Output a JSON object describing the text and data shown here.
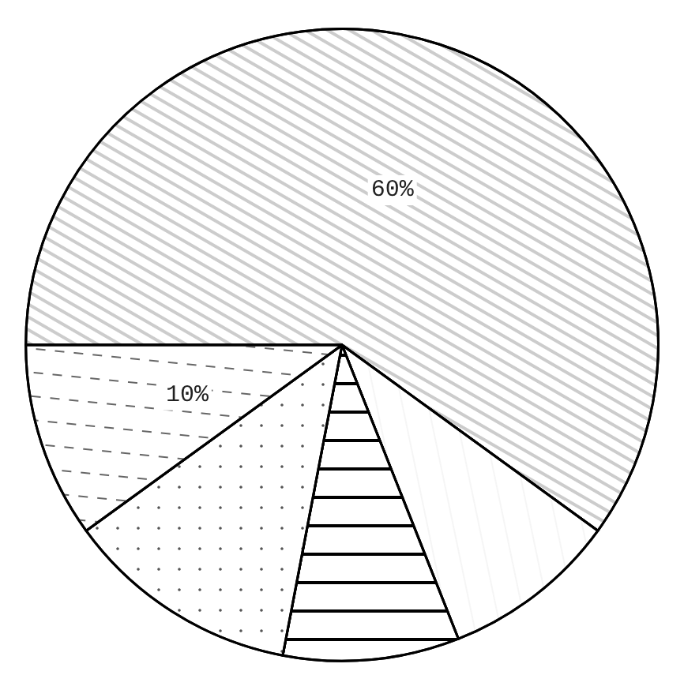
{
  "chart_data": {
    "type": "pie",
    "categories": [
      null,
      null,
      null,
      null,
      null
    ],
    "values": [
      60,
      9,
      9,
      12,
      10
    ],
    "colors": [
      "#ffffff",
      "#ffffff",
      "#ffffff",
      "#ffffff",
      "#ffffff"
    ],
    "value_labels": [
      "60%",
      null,
      null,
      null,
      "10%"
    ]
  }
}
